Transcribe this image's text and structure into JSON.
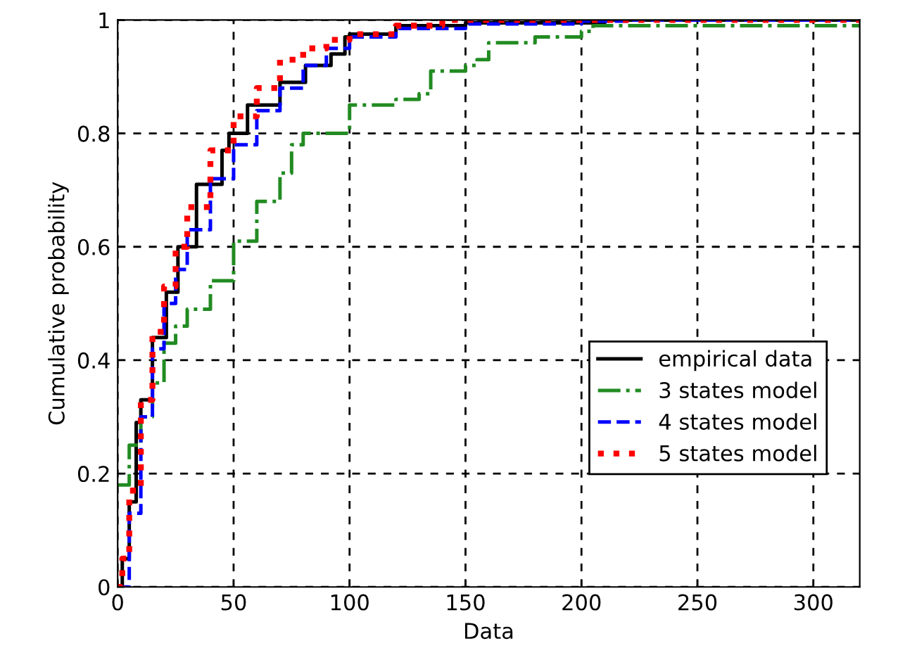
{
  "chart_data": {
    "type": "step",
    "xlabel": "Data",
    "ylabel": "Cumulative probability",
    "xlim": [
      0,
      320
    ],
    "ylim": [
      0,
      1
    ],
    "xticks": [
      0,
      50,
      100,
      150,
      200,
      250,
      300
    ],
    "yticks": [
      0,
      0.2,
      0.4,
      0.6,
      0.8,
      1
    ],
    "grid": true,
    "legend": "lower right",
    "series": [
      {
        "name": "empirical data",
        "color": "#000000",
        "line_style": "solid",
        "x": [
          0,
          2,
          5,
          8,
          10,
          15,
          21,
          26,
          34,
          45,
          48,
          56,
          70,
          81,
          92,
          98,
          100,
          120,
          150,
          210,
          320
        ],
        "values": [
          0,
          0.05,
          0.15,
          0.29,
          0.33,
          0.44,
          0.52,
          0.6,
          0.71,
          0.77,
          0.8,
          0.85,
          0.89,
          0.92,
          0.94,
          0.97,
          0.975,
          0.99,
          0.995,
          1,
          1
        ]
      },
      {
        "name": "3 states model",
        "color": "#228b22",
        "line_style": "dashdot",
        "x": [
          0,
          5,
          10,
          15,
          20,
          25,
          30,
          40,
          50,
          60,
          70,
          75,
          80,
          100,
          120,
          130,
          135,
          150,
          155,
          160,
          180,
          200,
          205,
          320
        ],
        "values": [
          0.18,
          0.25,
          0.3,
          0.36,
          0.43,
          0.46,
          0.49,
          0.54,
          0.61,
          0.68,
          0.73,
          0.78,
          0.8,
          0.85,
          0.86,
          0.87,
          0.91,
          0.92,
          0.93,
          0.96,
          0.97,
          0.98,
          0.99,
          0.99
        ]
      },
      {
        "name": "4 states model",
        "color": "#0000ff",
        "line_style": "dashed",
        "x": [
          0,
          5,
          10,
          15,
          20,
          25,
          30,
          40,
          50,
          60,
          70,
          80,
          90,
          100,
          120,
          150,
          200,
          220,
          320
        ],
        "values": [
          0,
          0.13,
          0.3,
          0.42,
          0.5,
          0.56,
          0.63,
          0.72,
          0.78,
          0.84,
          0.88,
          0.92,
          0.95,
          0.97,
          0.985,
          0.993,
          0.998,
          1,
          1
        ]
      },
      {
        "name": "5 states model",
        "color": "#ff0000",
        "line_style": "dotted",
        "x": [
          0,
          2,
          5,
          10,
          15,
          20,
          25,
          30,
          40,
          50,
          60,
          70,
          80,
          90,
          100,
          120,
          140,
          320
        ],
        "values": [
          0,
          0.05,
          0.17,
          0.33,
          0.45,
          0.53,
          0.6,
          0.67,
          0.77,
          0.83,
          0.88,
          0.93,
          0.95,
          0.965,
          0.975,
          0.99,
          1,
          1
        ]
      }
    ]
  }
}
